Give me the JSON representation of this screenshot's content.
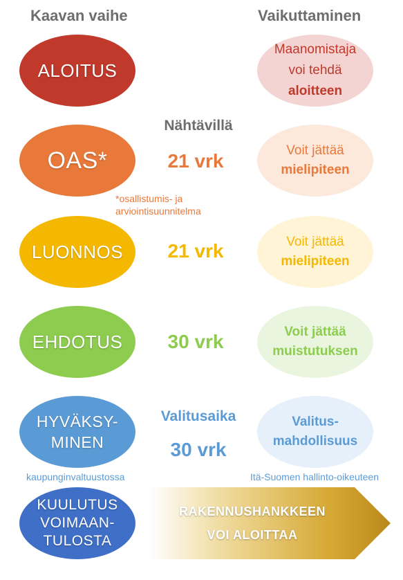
{
  "headers": {
    "left": "Kaavan vaihe",
    "right": "Vaikuttaminen"
  },
  "stages": [
    {
      "lines": [
        "ALOITUS"
      ],
      "color": "#c0392b"
    },
    {
      "lines": [
        "OAS*"
      ],
      "color": "#e8793a"
    },
    {
      "lines": [
        "LUONNOS"
      ],
      "color": "#f5b800"
    },
    {
      "lines": [
        "EHDOTUS"
      ],
      "color": "#8dcc4f"
    },
    {
      "lines": [
        "HYVÄKSY-",
        "MINEN"
      ],
      "color": "#5b9bd5"
    },
    {
      "lines": [
        "KUULUTUS",
        "VOIMAAN-",
        "TULOSTA"
      ],
      "color": "#3f6fc6"
    }
  ],
  "middle": {
    "nahtavilla_label": "Nähtävillä",
    "oas_days": "21 vrk",
    "luonnos_days": "21 vrk",
    "ehdotus_days": "30 vrk",
    "valitusaika_label": "Valitusaika",
    "valitusaika_days": "30 vrk"
  },
  "notes": {
    "oas_footnote_line1": "*osallistumis- ja",
    "oas_footnote_line2": "arviointisuunnitelma",
    "council": "kaupunginvaltuustossa",
    "court": "Itä-Suomen hallinto-oikeuteen"
  },
  "influence": [
    {
      "lines": [
        "Maanomistaja",
        "voi tehdä",
        "aloitteen"
      ],
      "bold_last": true,
      "fill": "#f4d4d2",
      "text_color": "#c0392b"
    },
    {
      "lines": [
        "Voit jättää",
        "mielipiteen"
      ],
      "bold_last": true,
      "fill": "#fde9dc",
      "text_color": "#e8793a"
    },
    {
      "lines": [
        "Voit jättää",
        "mielipiteen"
      ],
      "bold_last": true,
      "fill": "#fff4d6",
      "text_color": "#f5b800"
    },
    {
      "lines": [
        "Voit jättää",
        "muistutuksen"
      ],
      "bold_last": true,
      "fill": "#eaf5e0",
      "text_color": "#8dcc4f"
    },
    {
      "lines": [
        "Valitus-",
        "mahdollisuus"
      ],
      "bold_last": false,
      "fill": "#e6f0fa",
      "text_color": "#5b9bd5"
    }
  ],
  "arrow": {
    "line1": "RAKENNUSHANKKEEN",
    "line2": "VOI ALOITTAA"
  }
}
